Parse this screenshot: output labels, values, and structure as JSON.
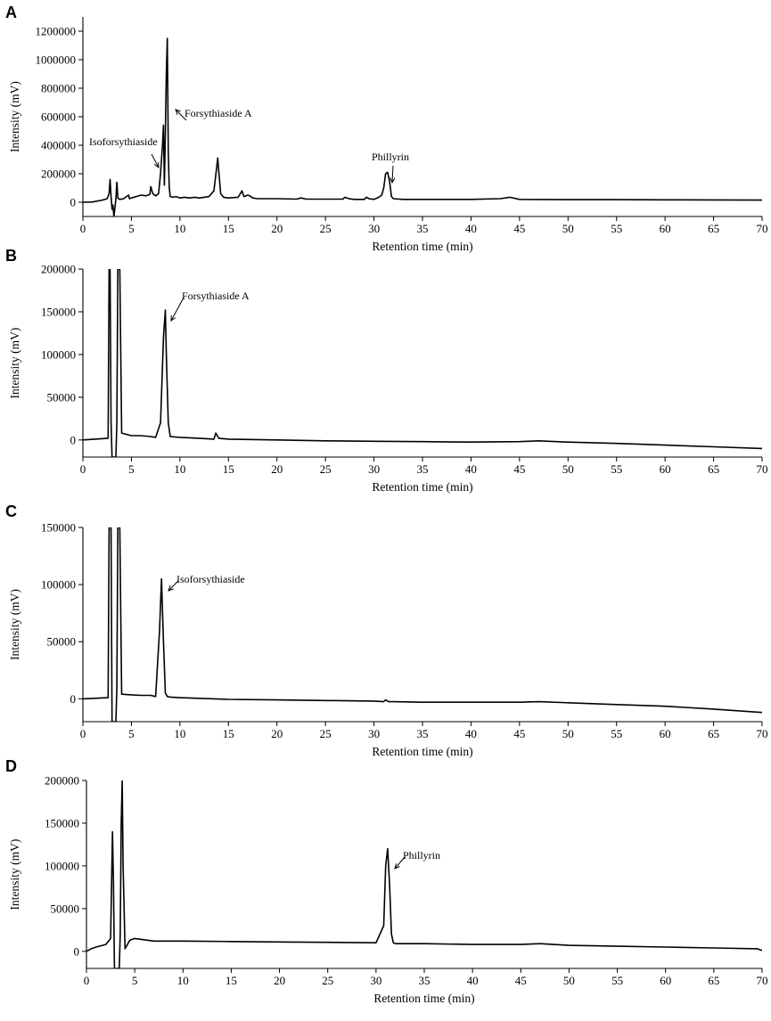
{
  "chart_data": [
    {
      "panel": "A",
      "type": "line",
      "xlabel": "Retention time (min)",
      "ylabel": "Intensity (mV)",
      "xlim": [
        0,
        70
      ],
      "ylim": [
        -100000,
        1300000
      ],
      "xticks": [
        0,
        5,
        10,
        15,
        20,
        25,
        30,
        35,
        40,
        45,
        50,
        55,
        60,
        65,
        70
      ],
      "yticks": [
        0,
        200000,
        400000,
        600000,
        800000,
        1000000,
        1200000
      ],
      "series": [
        {
          "x": [
            0,
            1,
            2,
            2.5,
            2.7,
            2.8,
            2.9,
            3,
            3.1,
            3.2,
            3.4,
            3.5,
            3.6,
            3.8,
            4.2,
            4.7,
            4.8,
            5,
            5.5,
            6,
            6.5,
            6.9,
            7,
            7.2,
            7.5,
            7.8,
            8,
            8.2,
            8.3,
            8.4,
            8.5,
            8.6,
            8.7,
            8.8,
            8.9,
            9,
            9.3,
            9.6,
            10,
            10.5,
            11,
            11.5,
            12,
            12.5,
            13,
            13.5,
            13.8,
            13.9,
            14,
            14.2,
            14.5,
            15,
            16,
            16.4,
            16.6,
            17,
            17.2,
            17.5,
            18,
            20,
            22,
            22.5,
            23,
            25,
            26.8,
            27,
            27.5,
            28,
            29,
            29.2,
            29.5,
            30,
            30.5,
            30.8,
            31,
            31.2,
            31.4,
            31.6,
            31.8,
            32,
            33,
            35,
            40,
            43,
            44,
            45,
            50,
            55,
            60,
            65,
            70
          ],
          "y": [
            0,
            2000,
            15000,
            25000,
            60000,
            160000,
            40000,
            -50000,
            -20000,
            -100000,
            20000,
            140000,
            30000,
            20000,
            25000,
            50000,
            25000,
            30000,
            40000,
            50000,
            45000,
            55000,
            110000,
            60000,
            45000,
            60000,
            200000,
            400000,
            540000,
            120000,
            480000,
            900000,
            1150000,
            350000,
            100000,
            40000,
            35000,
            40000,
            30000,
            35000,
            30000,
            35000,
            30000,
            35000,
            40000,
            80000,
            250000,
            310000,
            220000,
            60000,
            35000,
            30000,
            35000,
            80000,
            40000,
            50000,
            45000,
            30000,
            25000,
            25000,
            22000,
            30000,
            22000,
            22000,
            22000,
            35000,
            24000,
            20000,
            20000,
            35000,
            25000,
            20000,
            35000,
            50000,
            100000,
            200000,
            210000,
            150000,
            40000,
            25000,
            20000,
            20000,
            20000,
            25000,
            35000,
            20000,
            18000,
            18000,
            17000,
            16000,
            15000
          ]
        }
      ],
      "annotations": [
        {
          "label": "Isoforsythiaside",
          "x": 8.2,
          "y": 250000
        },
        {
          "label": "Forsythiaside A",
          "x": 8.9,
          "y": 650000
        },
        {
          "label": "Phillyrin",
          "x": 31.8,
          "y": 160000
        }
      ]
    },
    {
      "panel": "B",
      "type": "line",
      "xlabel": "Retention time (min)",
      "ylabel": "Intensity (mV)",
      "xlim": [
        0,
        70
      ],
      "ylim": [
        -20000,
        200000
      ],
      "xticks": [
        0,
        5,
        10,
        15,
        20,
        25,
        30,
        35,
        40,
        45,
        50,
        55,
        60,
        65,
        70
      ],
      "yticks": [
        0,
        50000,
        100000,
        150000,
        200000
      ],
      "series": [
        {
          "x": [
            0,
            2.6,
            2.7,
            2.75,
            2.8,
            2.9,
            3,
            3.1,
            3.2,
            3.4,
            3.5,
            3.6,
            3.7,
            3.8,
            4,
            5,
            6,
            7,
            7.5,
            8,
            8.3,
            8.5,
            8.6,
            8.8,
            9,
            10,
            12,
            13.5,
            13.7,
            14,
            15,
            20,
            25,
            30,
            35,
            40,
            45,
            47,
            50,
            55,
            60,
            65,
            70
          ],
          "y": [
            0,
            2000,
            200000,
            200000,
            200000,
            20000,
            -20000,
            -20000,
            -20000,
            -20000,
            20000,
            200000,
            200000,
            200000,
            8000,
            5000,
            5000,
            4000,
            3000,
            20000,
            120000,
            152000,
            100000,
            20000,
            4000,
            3000,
            2000,
            1000,
            8000,
            2000,
            1000,
            0,
            -1000,
            -1500,
            -2000,
            -2500,
            -2000,
            -1000,
            -2500,
            -4000,
            -6000,
            -8000,
            -10000
          ]
        }
      ],
      "annotations": [
        {
          "label": "Forsythiaside A",
          "x": 8.6,
          "y": 125000
        }
      ]
    },
    {
      "panel": "C",
      "type": "line",
      "xlabel": "Retention time (min)",
      "ylabel": "Intensity (mV)",
      "xlim": [
        0,
        70
      ],
      "ylim": [
        -20000,
        150000
      ],
      "xticks": [
        0,
        5,
        10,
        15,
        20,
        25,
        30,
        35,
        40,
        45,
        50,
        55,
        60,
        65,
        70
      ],
      "yticks": [
        0,
        50000,
        100000,
        150000
      ],
      "series": [
        {
          "x": [
            0,
            2.6,
            2.7,
            2.8,
            2.9,
            3,
            3.1,
            3.2,
            3.4,
            3.5,
            3.6,
            3.7,
            3.8,
            4,
            5,
            6,
            7,
            7.5,
            7.9,
            8.1,
            8.3,
            8.5,
            8.7,
            9,
            10,
            15,
            20,
            25,
            30,
            31,
            31.2,
            31.5,
            32,
            35,
            40,
            45,
            47,
            50,
            55,
            60,
            65,
            70
          ],
          "y": [
            0,
            1000,
            150000,
            150000,
            150000,
            -20000,
            -20000,
            -20000,
            -20000,
            10000,
            150000,
            150000,
            150000,
            4000,
            3500,
            3000,
            3000,
            2000,
            60000,
            105000,
            50000,
            5000,
            2000,
            1500,
            1000,
            -500,
            -1000,
            -1500,
            -2000,
            -2500,
            -1000,
            -2500,
            -2500,
            -3000,
            -3000,
            -3000,
            -2500,
            -3500,
            -5000,
            -6500,
            -9000,
            -12000
          ]
        }
      ],
      "annotations": [
        {
          "label": "Isoforsythiaside",
          "x": 8.3,
          "y": 90000
        }
      ]
    },
    {
      "panel": "D",
      "type": "line",
      "xlabel": "Retention time (min)",
      "ylabel": "Intensity (mV)",
      "xlim": [
        0,
        70
      ],
      "ylim": [
        -20000,
        200000
      ],
      "xticks": [
        0,
        5,
        10,
        15,
        20,
        25,
        30,
        35,
        40,
        45,
        50,
        55,
        60,
        65,
        70
      ],
      "yticks": [
        0,
        50000,
        100000,
        150000,
        200000
      ],
      "series": [
        {
          "x": [
            0,
            0.5,
            1,
            2,
            2.5,
            2.7,
            2.8,
            2.9,
            3,
            3.1,
            3.2,
            3.4,
            3.5,
            3.6,
            3.7,
            3.8,
            4,
            4.5,
            5,
            7,
            10,
            15,
            20,
            25,
            30,
            30.8,
            31,
            31.2,
            31.4,
            31.6,
            31.8,
            32,
            35,
            40,
            45,
            47,
            50,
            55,
            60,
            65,
            69.5,
            70
          ],
          "y": [
            0,
            3000,
            5000,
            8000,
            15000,
            140000,
            80000,
            -20000,
            -20000,
            -20000,
            -20000,
            -20000,
            20000,
            150000,
            200000,
            100000,
            3000,
            13000,
            15000,
            12000,
            12000,
            11500,
            11000,
            10500,
            10000,
            30000,
            100000,
            120000,
            80000,
            20000,
            10000,
            9000,
            9000,
            8000,
            8000,
            9000,
            7000,
            6000,
            5000,
            4000,
            3000,
            1000
          ]
        }
      ],
      "annotations": [
        {
          "label": "Phillyrin",
          "x": 31.6,
          "y": 105000
        }
      ]
    }
  ]
}
